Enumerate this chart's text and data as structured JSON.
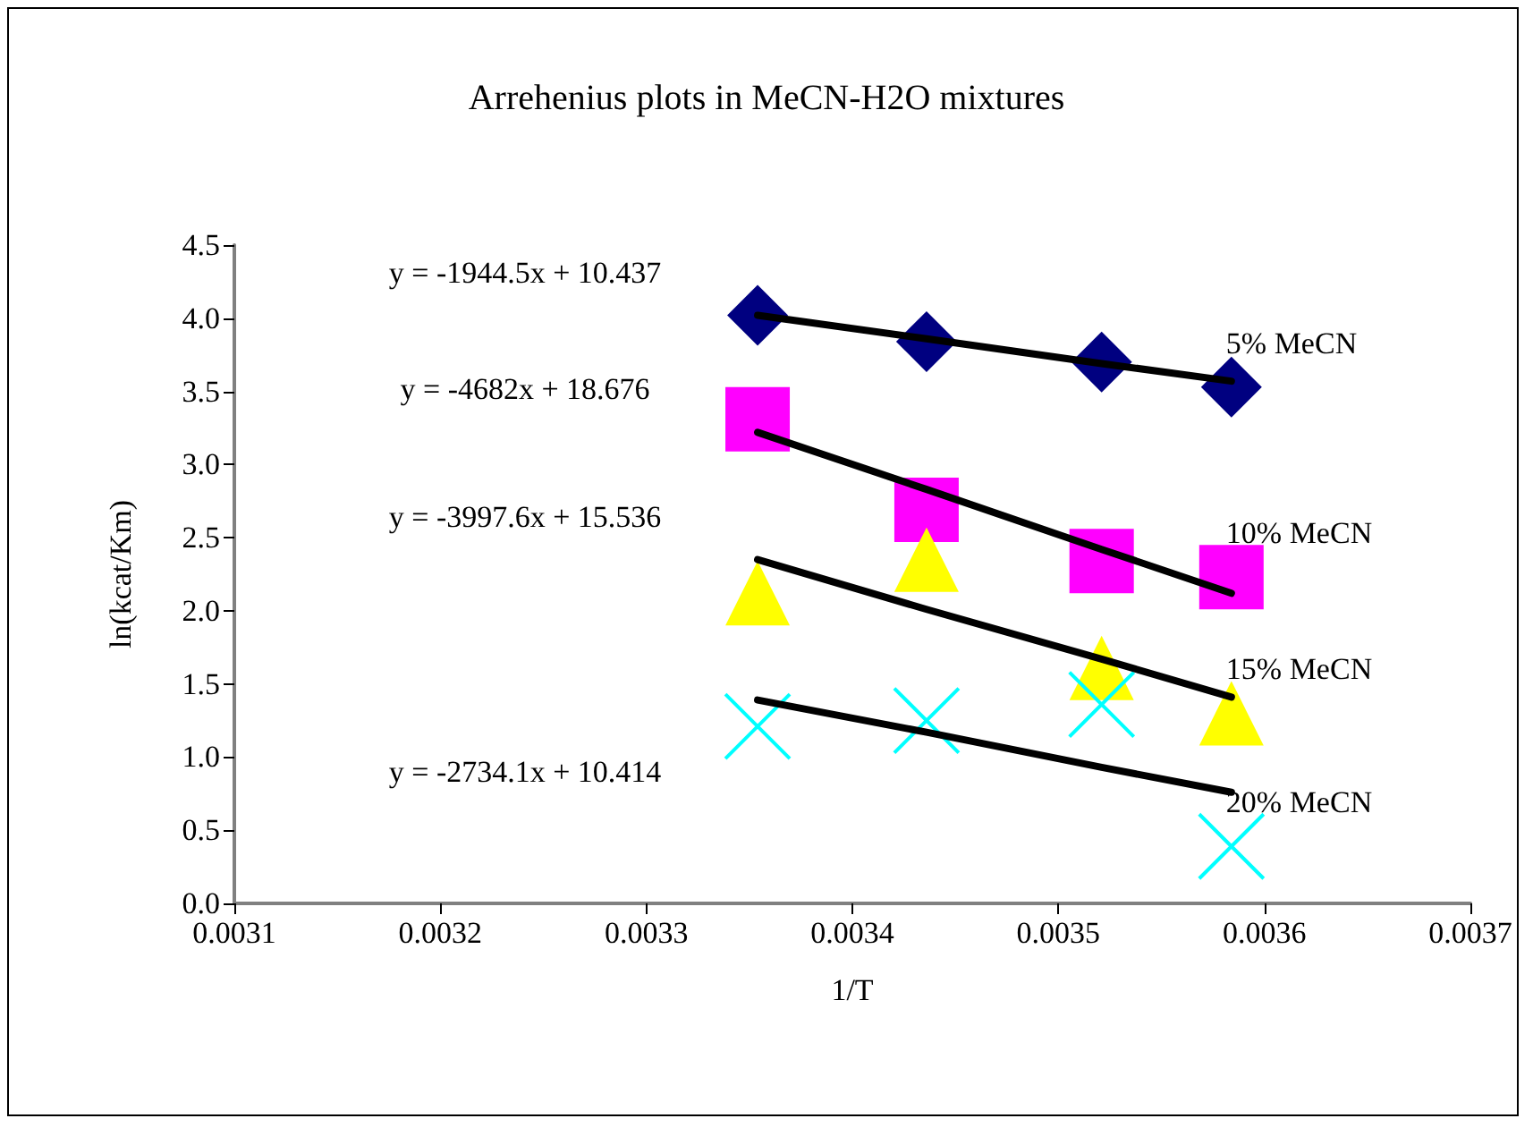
{
  "chart_data": {
    "type": "scatter",
    "title": "Arrehenius plots in MeCN-H2O mixtures",
    "xlabel": "1/T",
    "ylabel": "ln(kcat/Km)",
    "x": [
      0.003354,
      0.003436,
      0.003521,
      0.003584
    ],
    "series": [
      {
        "name": "5% MeCN",
        "color": "#000080",
        "marker": "diamond",
        "values": [
          4.02,
          3.84,
          3.7,
          3.53
        ]
      },
      {
        "name": "10% MeCN",
        "color": "#ff00ff",
        "marker": "square",
        "values": [
          3.31,
          2.69,
          2.34,
          2.23
        ]
      },
      {
        "name": "15% MeCN",
        "color": "#ffff00",
        "marker": "triangle",
        "values": [
          2.12,
          2.35,
          1.61,
          1.3
        ]
      },
      {
        "name": "20% MeCN",
        "color": "#00ffff",
        "marker": "cross",
        "values": [
          1.21,
          1.25,
          1.36,
          0.39
        ]
      },
      {
        "type": "line",
        "color": "#000000",
        "marker": "none",
        "values": [
          4.02,
          3.86,
          3.69,
          3.57
        ]
      },
      {
        "type": "line",
        "color": "#000000",
        "marker": "none",
        "values": [
          3.22,
          2.83,
          2.42,
          2.12
        ]
      },
      {
        "type": "line",
        "color": "#000000",
        "marker": "none",
        "values": [
          2.35,
          2.01,
          1.67,
          1.41
        ]
      },
      {
        "type": "line",
        "color": "#000000",
        "marker": "none",
        "values": [
          1.39,
          1.17,
          0.93,
          0.76
        ]
      }
    ],
    "annotations": [
      "y = -1944.5x + 10.437",
      "y = -4682x + 18.676",
      "y = -3997.6x + 15.536",
      "y = -2734.1x + 10.414"
    ],
    "xlim": [
      0.0031,
      0.0037
    ],
    "xticks": [
      0.0031,
      0.0032,
      0.0033,
      0.0034,
      0.0035,
      0.0036,
      0.0037
    ],
    "ylim": [
      0,
      4.5
    ],
    "yticks": [
      {
        "value": 0,
        "label": "0.0"
      },
      {
        "value": 0.5,
        "label": "0.5"
      },
      {
        "value": 1,
        "label": "1.0"
      },
      {
        "value": 1.5,
        "label": "1.5"
      },
      {
        "value": 2,
        "label": "2.0"
      },
      {
        "value": 2.5,
        "label": "2.5"
      },
      {
        "value": 3,
        "label": "3.0"
      },
      {
        "value": 3.5,
        "label": "3.5"
      },
      {
        "value": 4,
        "label": "4.0"
      },
      {
        "value": 4.5,
        "label": "4.5"
      }
    ],
    "grid": false,
    "legend": false
  }
}
